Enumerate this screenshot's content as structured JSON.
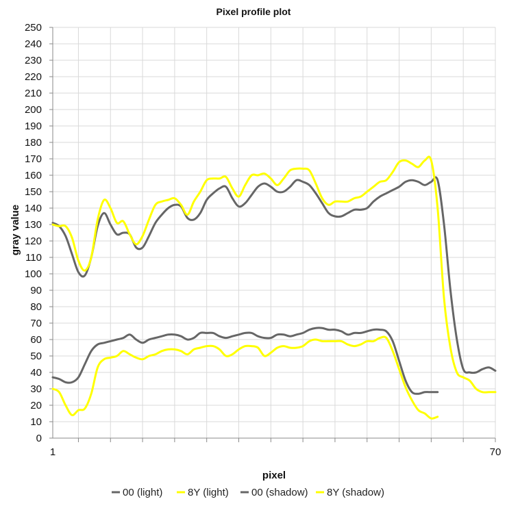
{
  "chart_data": {
    "type": "line",
    "title": "Pixel profile plot",
    "xlabel": "pixel",
    "ylabel": "gray value",
    "xlim": [
      1,
      70
    ],
    "ylim": [
      0,
      250
    ],
    "x_tick_labels": [
      "1",
      "70"
    ],
    "y_ticks": [
      0,
      10,
      20,
      30,
      40,
      50,
      60,
      70,
      80,
      90,
      100,
      110,
      120,
      130,
      140,
      150,
      160,
      170,
      180,
      190,
      200,
      210,
      220,
      230,
      240,
      250
    ],
    "grid": true,
    "legend_position": "bottom",
    "series": [
      {
        "name": "00 (light)",
        "color": "#666666",
        "x": [
          1,
          2,
          3,
          4,
          5,
          6,
          7,
          8,
          9,
          10,
          11,
          12,
          13,
          14,
          15,
          16,
          17,
          18,
          19,
          20,
          21,
          22,
          23,
          24,
          25,
          26,
          27,
          28,
          29,
          30,
          31,
          32,
          33,
          34,
          35,
          36,
          37,
          38,
          39,
          40,
          41,
          42,
          43,
          44,
          45,
          46,
          47,
          48,
          49,
          50,
          51,
          52,
          53,
          54,
          55,
          56,
          57,
          58,
          59,
          60,
          61,
          62,
          63,
          64,
          65,
          66,
          67,
          68,
          69,
          70
        ],
        "values": [
          131,
          129,
          123,
          112,
          101,
          99,
          110,
          129,
          137,
          130,
          124,
          125,
          124,
          116,
          116,
          123,
          131,
          136,
          140,
          142,
          141,
          134,
          133,
          137,
          145,
          149,
          152,
          153,
          146,
          141,
          143,
          148,
          153,
          155,
          153,
          150,
          150,
          153,
          157,
          156,
          154,
          149,
          143,
          137,
          135,
          135,
          137,
          139,
          139,
          140,
          144,
          147,
          149,
          151,
          153,
          156,
          157,
          156,
          154,
          156,
          157,
          130,
          90,
          60,
          42,
          40,
          40,
          42,
          43,
          41
        ]
      },
      {
        "name": "8Y (light)",
        "color": "#ffff00",
        "x": [
          1,
          2,
          3,
          4,
          5,
          6,
          7,
          8,
          9,
          10,
          11,
          12,
          13,
          14,
          15,
          16,
          17,
          18,
          19,
          20,
          21,
          22,
          23,
          24,
          25,
          26,
          27,
          28,
          29,
          30,
          31,
          32,
          33,
          34,
          35,
          36,
          37,
          38,
          39,
          40,
          41,
          42,
          43,
          44,
          45,
          46,
          47,
          48,
          49,
          50,
          51,
          52,
          53,
          54,
          55,
          56,
          57,
          58,
          59,
          60,
          61,
          62,
          63,
          64,
          65,
          66,
          67,
          68,
          69,
          70
        ],
        "values": [
          130,
          129,
          129,
          122,
          108,
          102,
          110,
          133,
          145,
          140,
          131,
          132,
          124,
          118,
          123,
          133,
          142,
          144,
          145,
          146,
          142,
          136,
          144,
          150,
          157,
          158,
          158,
          159,
          152,
          147,
          154,
          160,
          160,
          161,
          158,
          154,
          158,
          163,
          164,
          164,
          163,
          155,
          146,
          142,
          144,
          144,
          144,
          146,
          147,
          150,
          153,
          156,
          157,
          162,
          168,
          169,
          167,
          165,
          169,
          169,
          140,
          85,
          55,
          40,
          37,
          35,
          30,
          28,
          28,
          28
        ]
      },
      {
        "name": "00 (shadow)",
        "color": "#666666",
        "x": [
          1,
          2,
          3,
          4,
          5,
          6,
          7,
          8,
          9,
          10,
          11,
          12,
          13,
          14,
          15,
          16,
          17,
          18,
          19,
          20,
          21,
          22,
          23,
          24,
          25,
          26,
          27,
          28,
          29,
          30,
          31,
          32,
          33,
          34,
          35,
          36,
          37,
          38,
          39,
          40,
          41,
          42,
          43,
          44,
          45,
          46,
          47,
          48,
          49,
          50,
          51,
          52,
          53,
          54,
          55,
          56,
          57,
          58,
          59,
          60,
          61
        ],
        "values": [
          37,
          36,
          34,
          34,
          37,
          45,
          53,
          57,
          58,
          59,
          60,
          61,
          63,
          60,
          58,
          60,
          61,
          62,
          63,
          63,
          62,
          60,
          61,
          64,
          64,
          64,
          62,
          61,
          62,
          63,
          64,
          64,
          62,
          61,
          61,
          63,
          63,
          62,
          63,
          64,
          66,
          67,
          67,
          66,
          66,
          65,
          63,
          64,
          64,
          65,
          66,
          66,
          65,
          59,
          47,
          35,
          28,
          27,
          28,
          28,
          28
        ]
      },
      {
        "name": "8Y (shadow)",
        "color": "#ffff00",
        "x": [
          1,
          2,
          3,
          4,
          5,
          6,
          7,
          8,
          9,
          10,
          11,
          12,
          13,
          14,
          15,
          16,
          17,
          18,
          19,
          20,
          21,
          22,
          23,
          24,
          25,
          26,
          27,
          28,
          29,
          30,
          31,
          32,
          33,
          34,
          35,
          36,
          37,
          38,
          39,
          40,
          41,
          42,
          43,
          44,
          45,
          46,
          47,
          48,
          49,
          50,
          51,
          52,
          53,
          54,
          55,
          56,
          57,
          58,
          59,
          60,
          61
        ],
        "values": [
          30,
          28,
          20,
          14,
          17,
          18,
          27,
          43,
          48,
          49,
          50,
          53,
          51,
          49,
          48,
          50,
          51,
          53,
          54,
          54,
          53,
          51,
          54,
          55,
          56,
          56,
          54,
          50,
          51,
          54,
          56,
          56,
          55,
          50,
          52,
          55,
          56,
          55,
          55,
          56,
          59,
          60,
          59,
          59,
          59,
          59,
          57,
          56,
          57,
          59,
          59,
          61,
          61,
          53,
          42,
          31,
          23,
          17,
          15,
          12,
          13
        ]
      }
    ]
  }
}
